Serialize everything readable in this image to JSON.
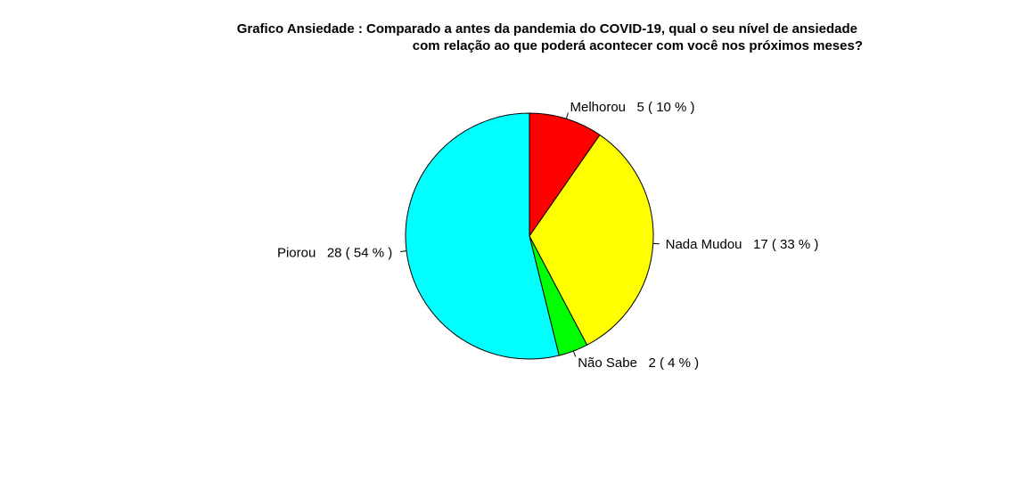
{
  "chart_data": {
    "type": "pie",
    "title_lines": [
      "Grafico Ansiedade : Comparado a antes da pandemia do COVID-19, qual o seu nível de ansiedade",
      "com relação ao que poderá acontecer com você nos próximos meses?"
    ],
    "slices": [
      {
        "label": "Melhorou   5 ( 10 % )",
        "value": 5,
        "color": "#FF0000"
      },
      {
        "label": "Nada Mudou   17 ( 33 % )",
        "value": 17,
        "color": "#FFFF00"
      },
      {
        "label": "Não Sabe   2 ( 4 % )",
        "value": 2,
        "color": "#00FF00"
      },
      {
        "label": "Piorou   28 ( 54 % )",
        "value": 28,
        "color": "#00FFFF"
      }
    ],
    "start": "12 o'clock",
    "direction": "clockwise"
  }
}
